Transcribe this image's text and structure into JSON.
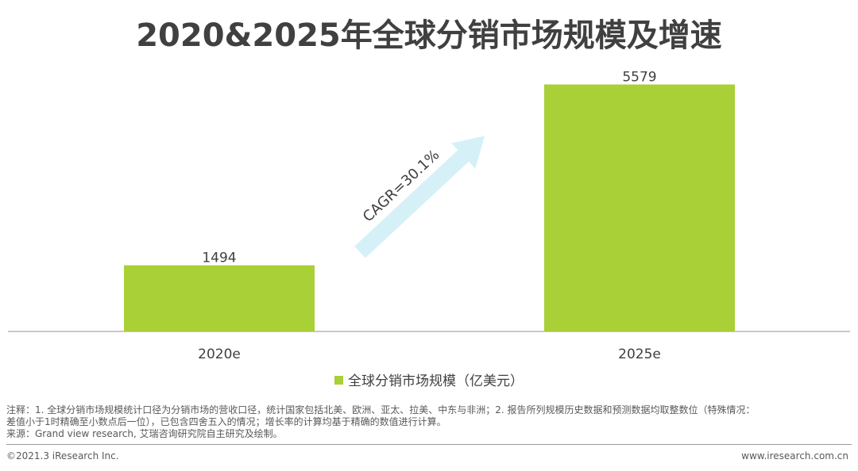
{
  "page_title": "2020&2025年全球分销市场规模及增速",
  "chart_data": {
    "type": "bar",
    "categories": [
      "2020e",
      "2025e"
    ],
    "series": [
      {
        "name": "全球分销市场规模（亿美元）",
        "values": [
          1494,
          5579
        ]
      }
    ],
    "data_labels": [
      "1494",
      "5579"
    ],
    "annotation": "CAGR=30.1%",
    "ylim": [
      0,
      6000
    ],
    "grid": false,
    "legend_position": "bottom",
    "bar_color": "#a9d037",
    "arrow_color": "#d6f0f7"
  },
  "notes": {
    "line1": "注释：1. 全球分销市场规模统计口径为分销市场的营收口径，统计国家包括北美、欧洲、亚太、拉美、中东与非洲；2. 报告所列规模历史数据和预测数据均取整数位（特殊情况：",
    "line2": "差值小于1时精确至小数点后一位），已包含四舍五入的情况；增长率的计算均基于精确的数值进行计算。",
    "line3": "来源：Grand view research, 艾瑞咨询研究院自主研究及绘制。"
  },
  "footer": {
    "copyright": "©2021.3 iResearch Inc.",
    "website": "www.iresearch.com.cn"
  }
}
